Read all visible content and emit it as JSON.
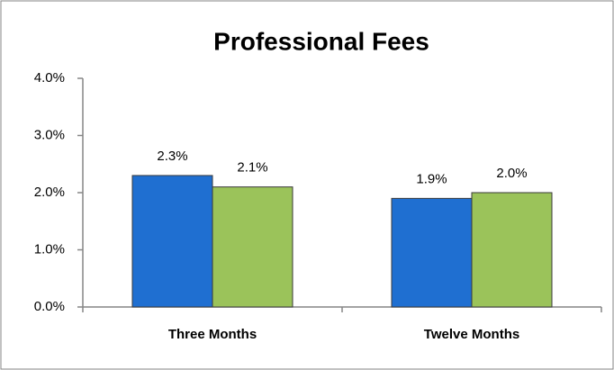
{
  "chart_data": {
    "type": "bar",
    "title": "Professional Fees",
    "categories": [
      "Three Months",
      "Twelve Months"
    ],
    "series": [
      {
        "color": "#1f6fd1",
        "values": [
          2.3,
          1.9
        ],
        "value_labels": [
          "2.3%",
          "1.9%"
        ]
      },
      {
        "color": "#9bc35a",
        "values": [
          2.1,
          2.0
        ],
        "value_labels": [
          "2.1%",
          "2.0%"
        ]
      }
    ],
    "ylim": [
      0,
      4
    ],
    "yticks": [
      {
        "value": 0,
        "label": "0.0%"
      },
      {
        "value": 1,
        "label": "1.0%"
      },
      {
        "value": 2,
        "label": "2.0%"
      },
      {
        "value": 3,
        "label": "3.0%"
      },
      {
        "value": 4,
        "label": "4.0%"
      }
    ]
  }
}
